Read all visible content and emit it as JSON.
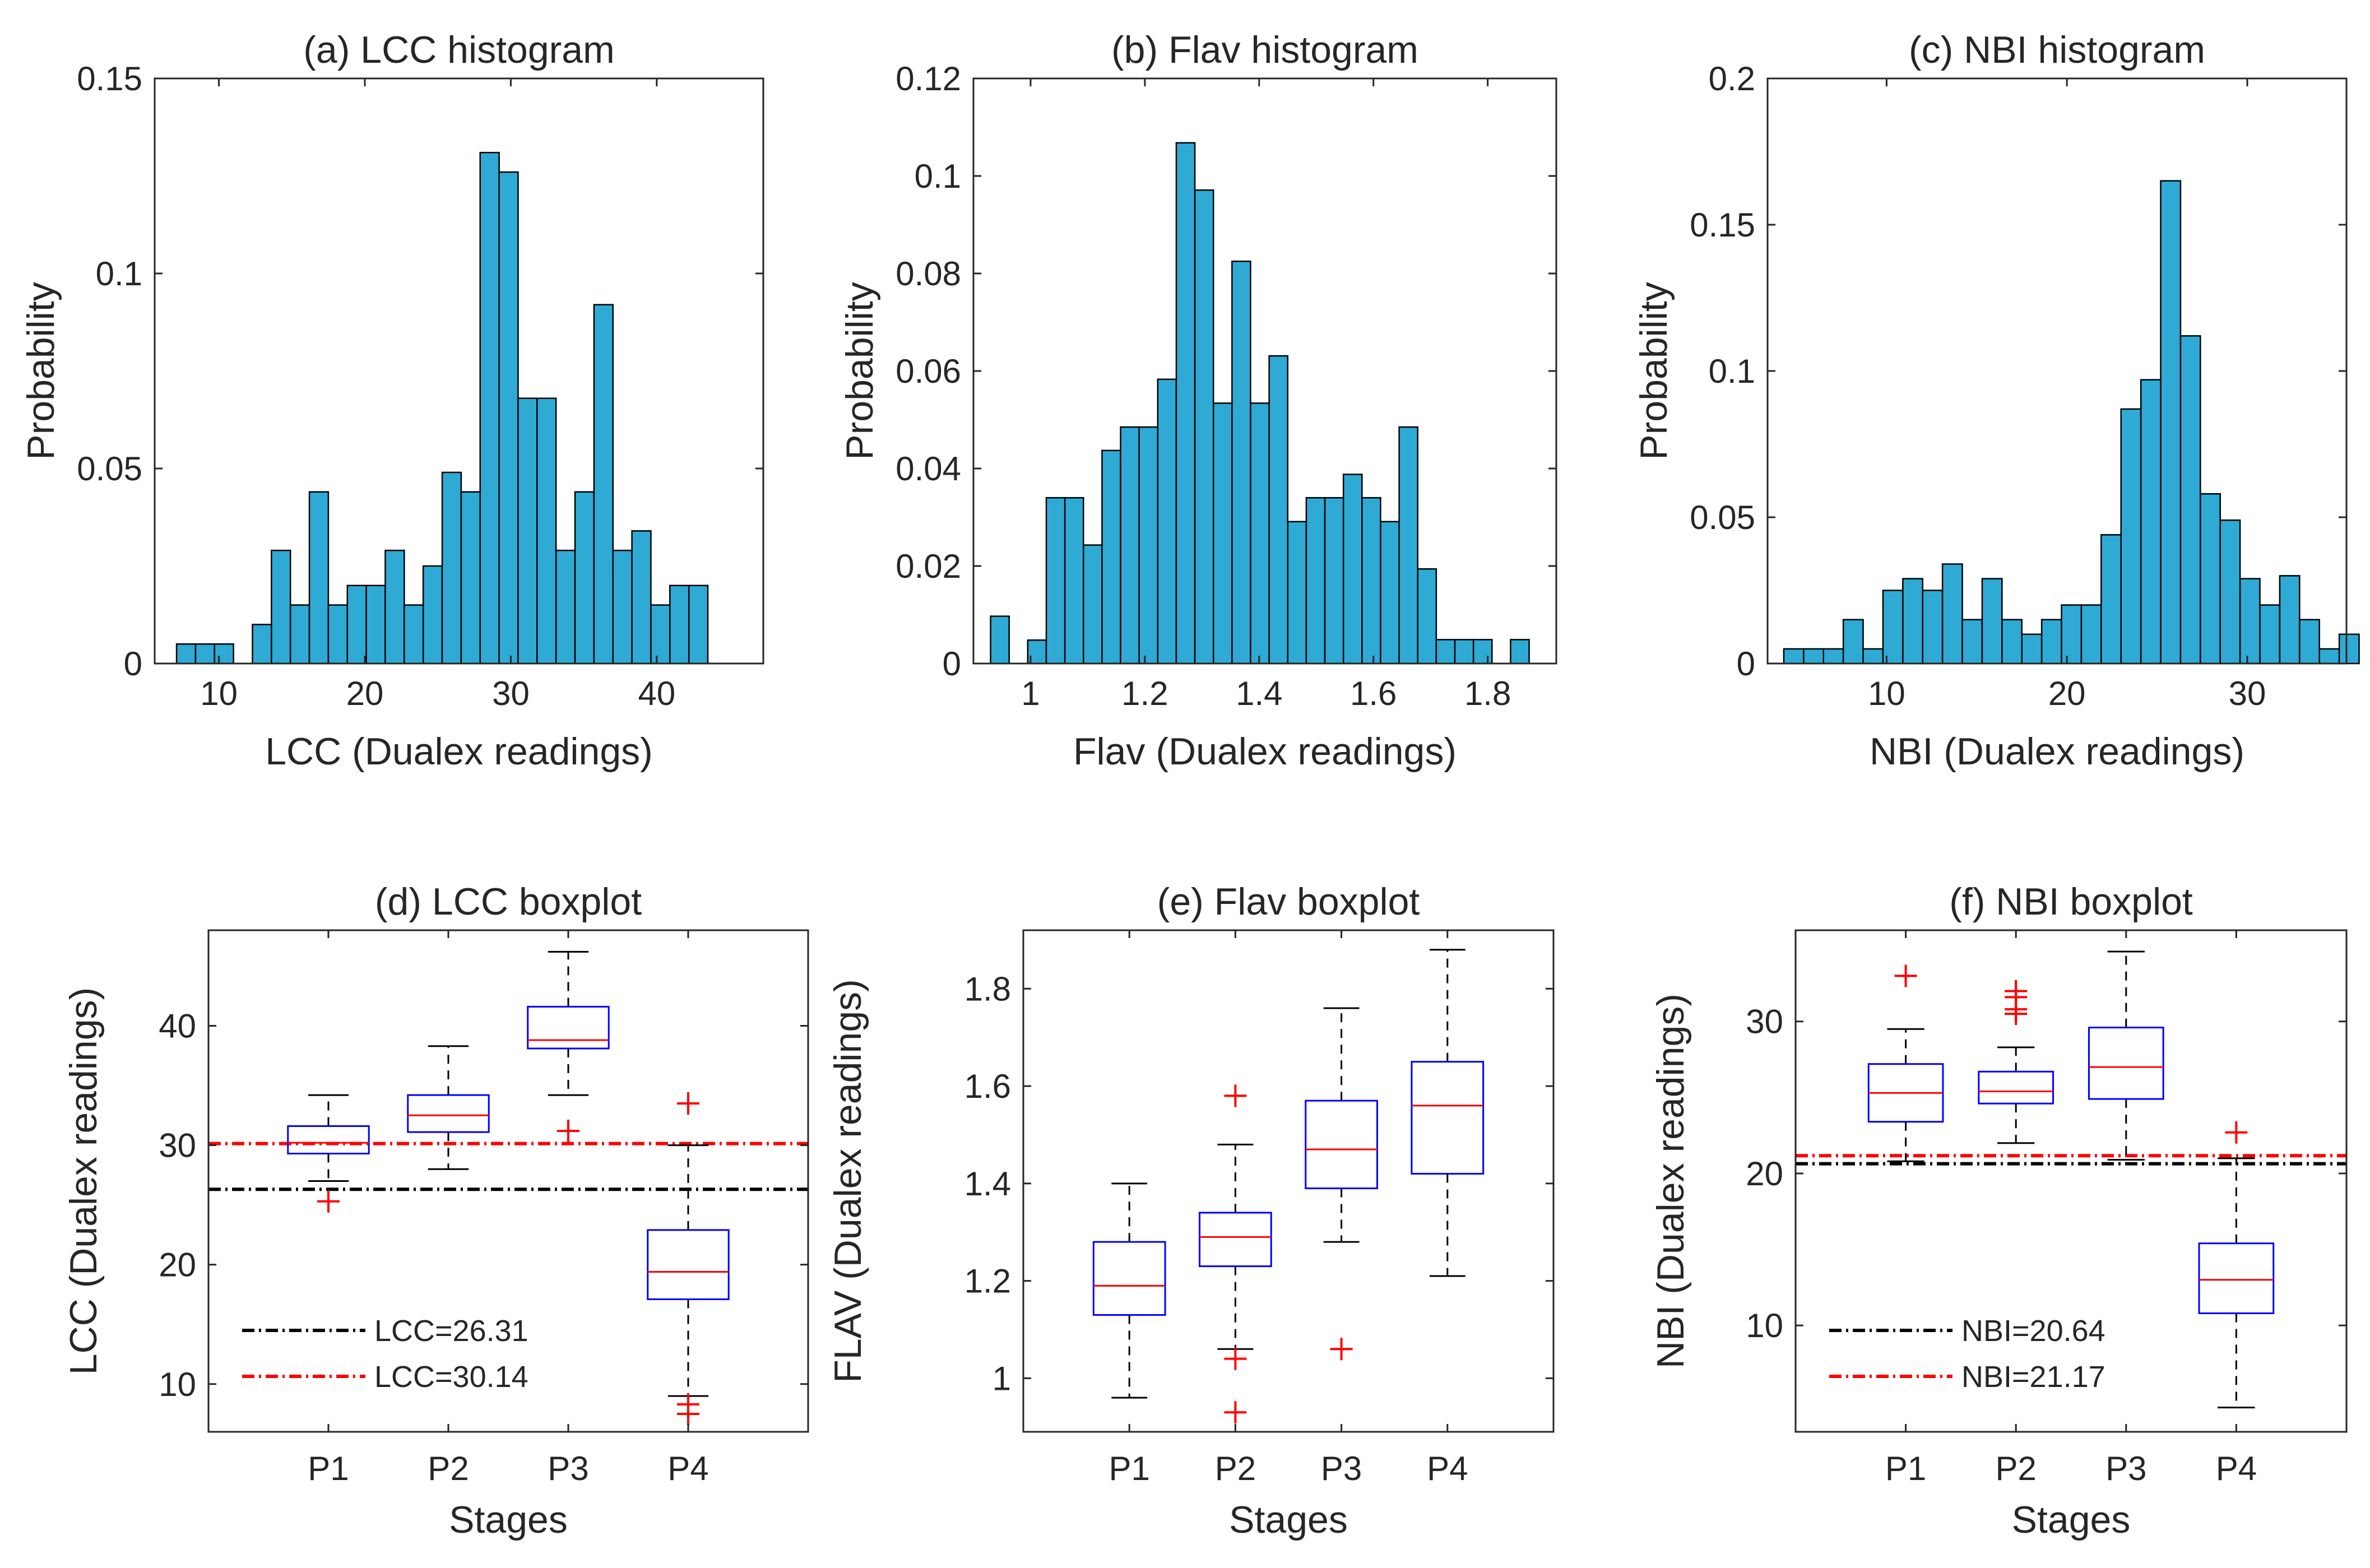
{
  "colors": {
    "bar_fill": "#2eaad4",
    "bar_edge": "#000000",
    "box_edge": "#0000ff",
    "median": "#ff0000",
    "whisker": "#000000",
    "outlier": "#ff0000",
    "ref_line_1": "#000000",
    "ref_line_2": "#ff0000"
  },
  "chart_data": [
    {
      "id": "a",
      "type": "bar",
      "subtype": "histogram",
      "title": "(a) LCC histogram",
      "xlabel": "LCC (Dualex readings)",
      "ylabel": "Probability",
      "xlim": [
        5.6,
        47.3
      ],
      "ylim": [
        0,
        0.15
      ],
      "xticks": [
        10,
        20,
        30,
        40
      ],
      "yticks": [
        0,
        0.05,
        0.1,
        0.15
      ],
      "ytick_labels": [
        "0",
        "0.05",
        "0.1",
        "0.15"
      ],
      "bin_start": 7.1,
      "bin_width": 1.3,
      "values": [
        0.005,
        0.005,
        0.005,
        0.0,
        0.01,
        0.029,
        0.015,
        0.044,
        0.015,
        0.02,
        0.02,
        0.029,
        0.015,
        0.025,
        0.049,
        0.044,
        0.131,
        0.126,
        0.068,
        0.068,
        0.029,
        0.044,
        0.092,
        0.029,
        0.034,
        0.015,
        0.02,
        0.02
      ]
    },
    {
      "id": "b",
      "type": "bar",
      "subtype": "histogram",
      "title": "(b) Flav histogram",
      "xlabel": "Flav (Dualex readings)",
      "ylabel": "Probability",
      "xlim": [
        0.9,
        1.92
      ],
      "ylim": [
        0,
        0.12
      ],
      "xticks": [
        1,
        1.2,
        1.4,
        1.6,
        1.8
      ],
      "yticks": [
        0,
        0.02,
        0.04,
        0.06,
        0.08,
        0.1,
        0.12
      ],
      "ytick_labels": [
        "0",
        "0.02",
        "0.04",
        "0.06",
        "0.08",
        "0.1",
        "0.12"
      ],
      "bin_start": 0.93,
      "bin_width": 0.0325,
      "values": [
        0.0097,
        0.0,
        0.0048,
        0.034,
        0.034,
        0.0243,
        0.0437,
        0.0485,
        0.0485,
        0.0583,
        0.1068,
        0.0971,
        0.0534,
        0.0825,
        0.0534,
        0.0631,
        0.0291,
        0.034,
        0.034,
        0.0388,
        0.034,
        0.0291,
        0.0485,
        0.0194,
        0.0049,
        0.0049,
        0.0049,
        0.0,
        0.0049
      ]
    },
    {
      "id": "c",
      "type": "bar",
      "subtype": "histogram",
      "title": "(c) NBI histogram",
      "xlabel": "NBI (Dualex readings)",
      "ylabel": "Probability",
      "xlim": [
        3.4,
        35.5
      ],
      "ylim": [
        0,
        0.2
      ],
      "xticks": [
        10,
        20,
        30
      ],
      "yticks": [
        0,
        0.05,
        0.1,
        0.15,
        0.2
      ],
      "ytick_labels": [
        "0",
        "0.05",
        "0.1",
        "0.15",
        "0.2"
      ],
      "bin_start": 4.3,
      "bin_width": 1.1,
      "values": [
        0.005,
        0.005,
        0.005,
        0.015,
        0.005,
        0.025,
        0.029,
        0.025,
        0.034,
        0.015,
        0.029,
        0.015,
        0.01,
        0.015,
        0.02,
        0.02,
        0.044,
        0.087,
        0.097,
        0.165,
        0.112,
        0.058,
        0.049,
        0.029,
        0.02,
        0.03,
        0.015,
        0.005,
        0.01
      ]
    },
    {
      "id": "d",
      "type": "boxplot",
      "title": "(d) LCC boxplot",
      "xlabel": "Stages",
      "ylabel": "LCC (Dualex readings)",
      "categories": [
        "P1",
        "P2",
        "P3",
        "P4"
      ],
      "ylim": [
        6,
        48
      ],
      "yticks": [
        10,
        20,
        30,
        40
      ],
      "boxes": [
        {
          "min": 27.0,
          "q1": 29.3,
          "median": 30.2,
          "q3": 31.6,
          "max": 34.2,
          "outliers": [
            25.3
          ]
        },
        {
          "min": 28.0,
          "q1": 31.1,
          "median": 32.5,
          "q3": 34.2,
          "max": 38.3,
          "outliers": []
        },
        {
          "min": 34.2,
          "q1": 38.1,
          "median": 38.8,
          "q3": 41.6,
          "max": 46.2,
          "outliers": [
            31.2
          ]
        },
        {
          "min": 9.0,
          "q1": 17.1,
          "median": 19.4,
          "q3": 22.9,
          "max": 30.0,
          "outliers": [
            33.5,
            8.3,
            7.5
          ]
        }
      ],
      "reference_lines": [
        {
          "label": "LCC=26.31",
          "value": 26.31,
          "color": "#000000"
        },
        {
          "label": "LCC=30.14",
          "value": 30.14,
          "color": "#ff0000"
        }
      ],
      "legend_position": "bottom-left"
    },
    {
      "id": "e",
      "type": "boxplot",
      "title": "(e) Flav boxplot",
      "xlabel": "Stages",
      "ylabel": "FLAV (Dualex readings)",
      "categories": [
        "P1",
        "P2",
        "P3",
        "P4"
      ],
      "ylim": [
        0.89,
        1.92
      ],
      "yticks": [
        1,
        1.2,
        1.4,
        1.6,
        1.8
      ],
      "boxes": [
        {
          "min": 0.96,
          "q1": 1.13,
          "median": 1.19,
          "q3": 1.28,
          "max": 1.4,
          "outliers": []
        },
        {
          "min": 1.06,
          "q1": 1.23,
          "median": 1.29,
          "q3": 1.34,
          "max": 1.48,
          "outliers": [
            1.58,
            1.04,
            0.93
          ]
        },
        {
          "min": 1.28,
          "q1": 1.39,
          "median": 1.47,
          "q3": 1.57,
          "max": 1.76,
          "outliers": [
            1.06
          ]
        },
        {
          "min": 1.21,
          "q1": 1.42,
          "median": 1.56,
          "q3": 1.65,
          "max": 1.88,
          "outliers": []
        }
      ]
    },
    {
      "id": "f",
      "type": "boxplot",
      "title": "(f) NBI boxplot",
      "xlabel": "Stages",
      "ylabel": "NBI (Dualex readings)",
      "categories": [
        "P1",
        "P2",
        "P3",
        "P4"
      ],
      "ylim": [
        3,
        36
      ],
      "yticks": [
        10,
        20,
        30
      ],
      "boxes": [
        {
          "min": 20.8,
          "q1": 23.4,
          "median": 25.3,
          "q3": 27.2,
          "max": 29.5,
          "outliers": [
            33.0
          ]
        },
        {
          "min": 22.0,
          "q1": 24.6,
          "median": 25.4,
          "q3": 26.7,
          "max": 28.3,
          "outliers": [
            32.0,
            31.6,
            30.8,
            30.5
          ]
        },
        {
          "min": 20.9,
          "q1": 24.9,
          "median": 27.0,
          "q3": 29.6,
          "max": 34.6,
          "outliers": []
        },
        {
          "min": 4.6,
          "q1": 10.8,
          "median": 13.0,
          "q3": 15.4,
          "max": 21.0,
          "outliers": [
            22.7
          ]
        }
      ],
      "reference_lines": [
        {
          "label": "NBI=20.64",
          "value": 20.64,
          "color": "#000000"
        },
        {
          "label": "NBI=21.17",
          "value": 21.17,
          "color": "#ff0000"
        }
      ],
      "legend_position": "bottom-left"
    }
  ]
}
